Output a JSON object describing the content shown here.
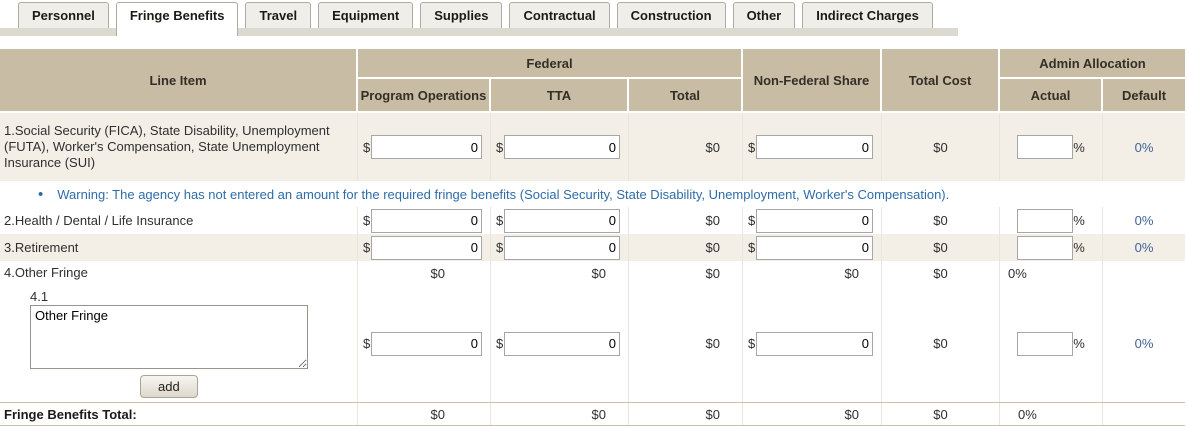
{
  "tabs": [
    {
      "label": "Personnel",
      "active": false
    },
    {
      "label": "Fringe Benefits",
      "active": true
    },
    {
      "label": "Travel",
      "active": false
    },
    {
      "label": "Equipment",
      "active": false
    },
    {
      "label": "Supplies",
      "active": false
    },
    {
      "label": "Contractual",
      "active": false
    },
    {
      "label": "Construction",
      "active": false
    },
    {
      "label": "Other",
      "active": false
    },
    {
      "label": "Indirect Charges",
      "active": false
    }
  ],
  "header": {
    "line_item": "Line Item",
    "federal": "Federal",
    "program_operations": "Program Operations",
    "tta": "TTA",
    "total": "Total",
    "non_federal_share": "Non-Federal Share",
    "total_cost": "Total Cost",
    "admin_allocation": "Admin Allocation",
    "actual": "Actual",
    "default": "Default"
  },
  "symbols": {
    "currency": "$",
    "percent": "%",
    "bullet": "•"
  },
  "rows": {
    "row1": {
      "label": "1.Social Security (FICA), State Disability, Unemployment (FUTA), Worker's Compensation, State Unemployment Insurance (SUI)",
      "program_operations_value": "0",
      "tta_value": "0",
      "total": "$0",
      "non_federal_value": "0",
      "total_cost": "$0",
      "actual_value": "",
      "default": "0%"
    },
    "warning": "Warning: The agency has not entered an amount for the required fringe benefits (Social Security, State Disability, Unemployment, Worker's Compensation).",
    "row2": {
      "label": "2.Health / Dental / Life Insurance",
      "program_operations_value": "0",
      "tta_value": "0",
      "total": "$0",
      "non_federal_value": "0",
      "total_cost": "$0",
      "actual_value": "",
      "default": "0%"
    },
    "row3": {
      "label": "3.Retirement",
      "program_operations_value": "0",
      "tta_value": "0",
      "total": "$0",
      "non_federal_value": "0",
      "total_cost": "$0",
      "actual_value": "",
      "default": "0%"
    },
    "row4": {
      "label": "4.Other Fringe",
      "program_operations": "$0",
      "tta": "$0",
      "total": "$0",
      "non_federal": "$0",
      "total_cost": "$0",
      "actual": "0%"
    },
    "row41": {
      "label": "4.1",
      "description_value": "Other Fringe",
      "add_button": "add",
      "program_operations_value": "0",
      "tta_value": "0",
      "total": "$0",
      "non_federal_value": "0",
      "total_cost": "$0",
      "actual_value": "",
      "default": "0%"
    }
  },
  "totals": {
    "label": "Fringe Benefits Total:",
    "program_operations": "$0",
    "tta": "$0",
    "total": "$0",
    "non_federal": "$0",
    "total_cost": "$0",
    "actual": "0%"
  },
  "colors": {
    "header_bg": "#c9bca4",
    "stripe_bg": "#f3efe7",
    "warning_text": "#2e6da8",
    "default_percent_text": "#40639a",
    "tab_band": "#dcd9d1"
  }
}
